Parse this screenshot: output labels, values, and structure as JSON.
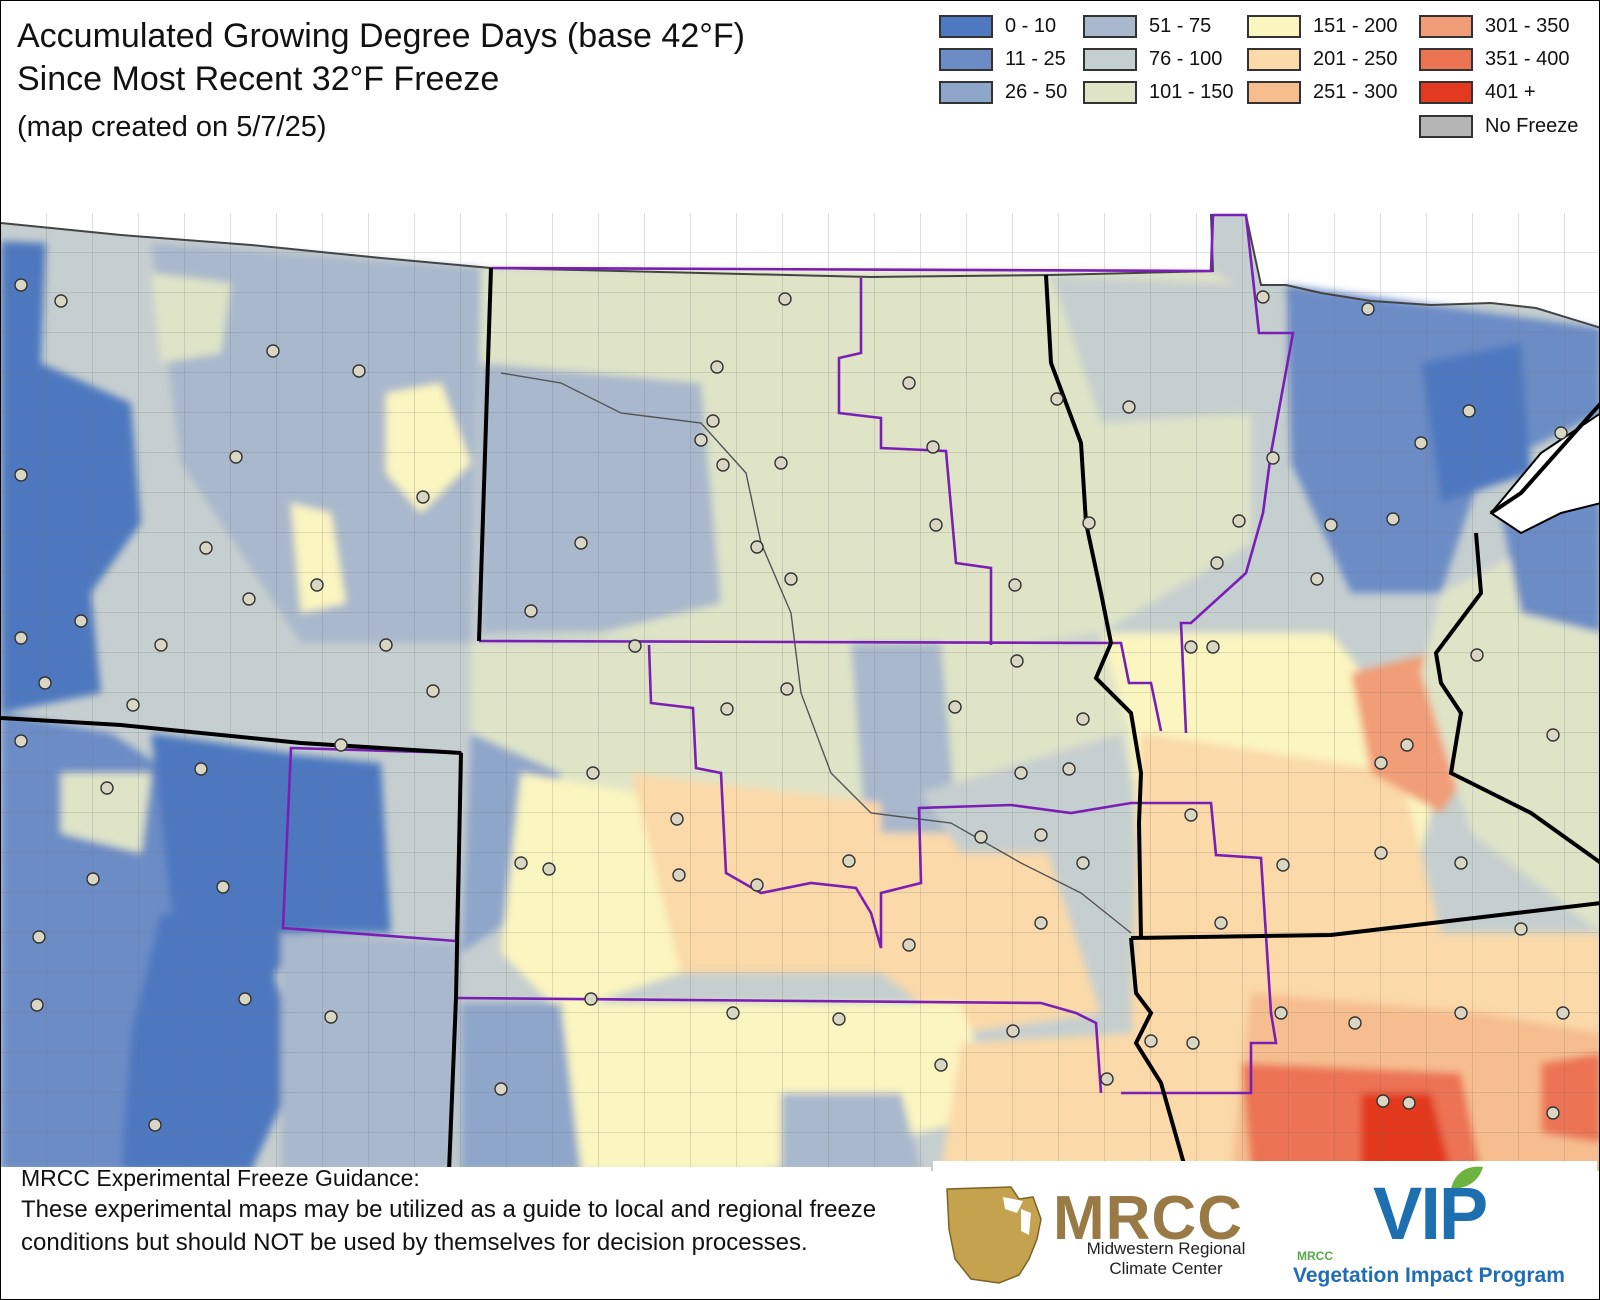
{
  "title": {
    "line1": "Accumulated Growing Degree Days (base 42°F)",
    "line2": "Since Most Recent 32°F Freeze",
    "subtitle": "(map created on 5/7/25)"
  },
  "legend": [
    {
      "label": "0 - 10",
      "color": "#4e78bf"
    },
    {
      "label": "11 - 25",
      "color": "#6c8cc6"
    },
    {
      "label": "26 - 50",
      "color": "#8fa6cb"
    },
    {
      "label": "51 - 75",
      "color": "#a9b8cc"
    },
    {
      "label": "76 - 100",
      "color": "#c6cfcf"
    },
    {
      "label": "101 - 150",
      "color": "#dfe4c7"
    },
    {
      "label": "151 - 200",
      "color": "#fbf5c0"
    },
    {
      "label": "201 - 250",
      "color": "#fbd9a9"
    },
    {
      "label": "251 - 300",
      "color": "#f6be8f"
    },
    {
      "label": "301 - 350",
      "color": "#f19d77"
    },
    {
      "label": "351 - 400",
      "color": "#ec7352"
    },
    {
      "label": "401 +",
      "color": "#e2391f"
    },
    {
      "label": "No Freeze",
      "color": "#b5b5b5"
    }
  ],
  "disclaimer": {
    "heading": "MRCC Experimental Freeze Guidance:",
    "body": "These experimental maps may be utilized as a guide to local and regional freeze conditions but should NOT be used by themselves for decision processes."
  },
  "logos": {
    "mrcc_name": "MRCC",
    "mrcc_full": "Midwestern Regional Climate Center",
    "vip_mrcc": "MRCC",
    "vip_name": "VIP",
    "vip_full": "Vegetation Impact Program"
  },
  "colors": {
    "state_border": "#000000",
    "region_border": "#7a1fb5",
    "county_line": "#6e6e6e",
    "station_fill": "#d9d6c4",
    "lake": "#ffffff"
  }
}
